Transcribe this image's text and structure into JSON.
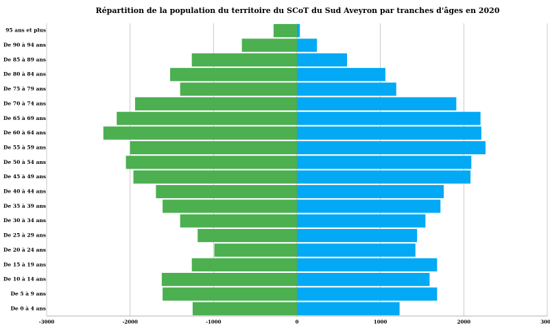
{
  "chart_data": {
    "type": "bar",
    "orientation": "horizontal",
    "stacked": true,
    "title": "Répartition de la population du territoire du SCoT du Sud Aveyron par tranches d'âges en 2020",
    "categories": [
      "95 ans et plus",
      "De 90 à 94 ans",
      "De 85 à 89 ans",
      "De 80 à 84 ans",
      "De 75 à 79 ans",
      "De 70 à 74 ans",
      "De 65 à 69 ans",
      "De 60 à 64 ans",
      "De 55 à 59 ans",
      "De 50 à 54 ans",
      "De 45 à 49 ans",
      "De 40 à 44 ans",
      "De 35 à 39 ans",
      "De 30 à 34 ans",
      "De 25 à 29 ans",
      "De 20 à 24 ans",
      "De 15 à 19 ans",
      "De 10 à 14 ans",
      "De 5 à 9 ans",
      "De 0 à 4 ans"
    ],
    "series": [
      {
        "color": "#4caf50",
        "values": [
          -280,
          -660,
          -1260,
          -1520,
          -1400,
          -1940,
          -2160,
          -2320,
          -2000,
          -2050,
          -1960,
          -1690,
          -1610,
          -1400,
          -1190,
          -990,
          -1260,
          -1620,
          -1610,
          -1250
        ]
      },
      {
        "color": "#03a9f4",
        "values": [
          35,
          240,
          600,
          1060,
          1190,
          1910,
          2200,
          2210,
          2260,
          2090,
          2080,
          1760,
          1720,
          1540,
          1440,
          1420,
          1680,
          1590,
          1680,
          1230
        ]
      }
    ],
    "xlim": [
      -3000,
      3000
    ],
    "xticks": [
      -3000,
      -2000,
      -1000,
      0,
      1000,
      2000,
      3000
    ],
    "grid": true
  }
}
